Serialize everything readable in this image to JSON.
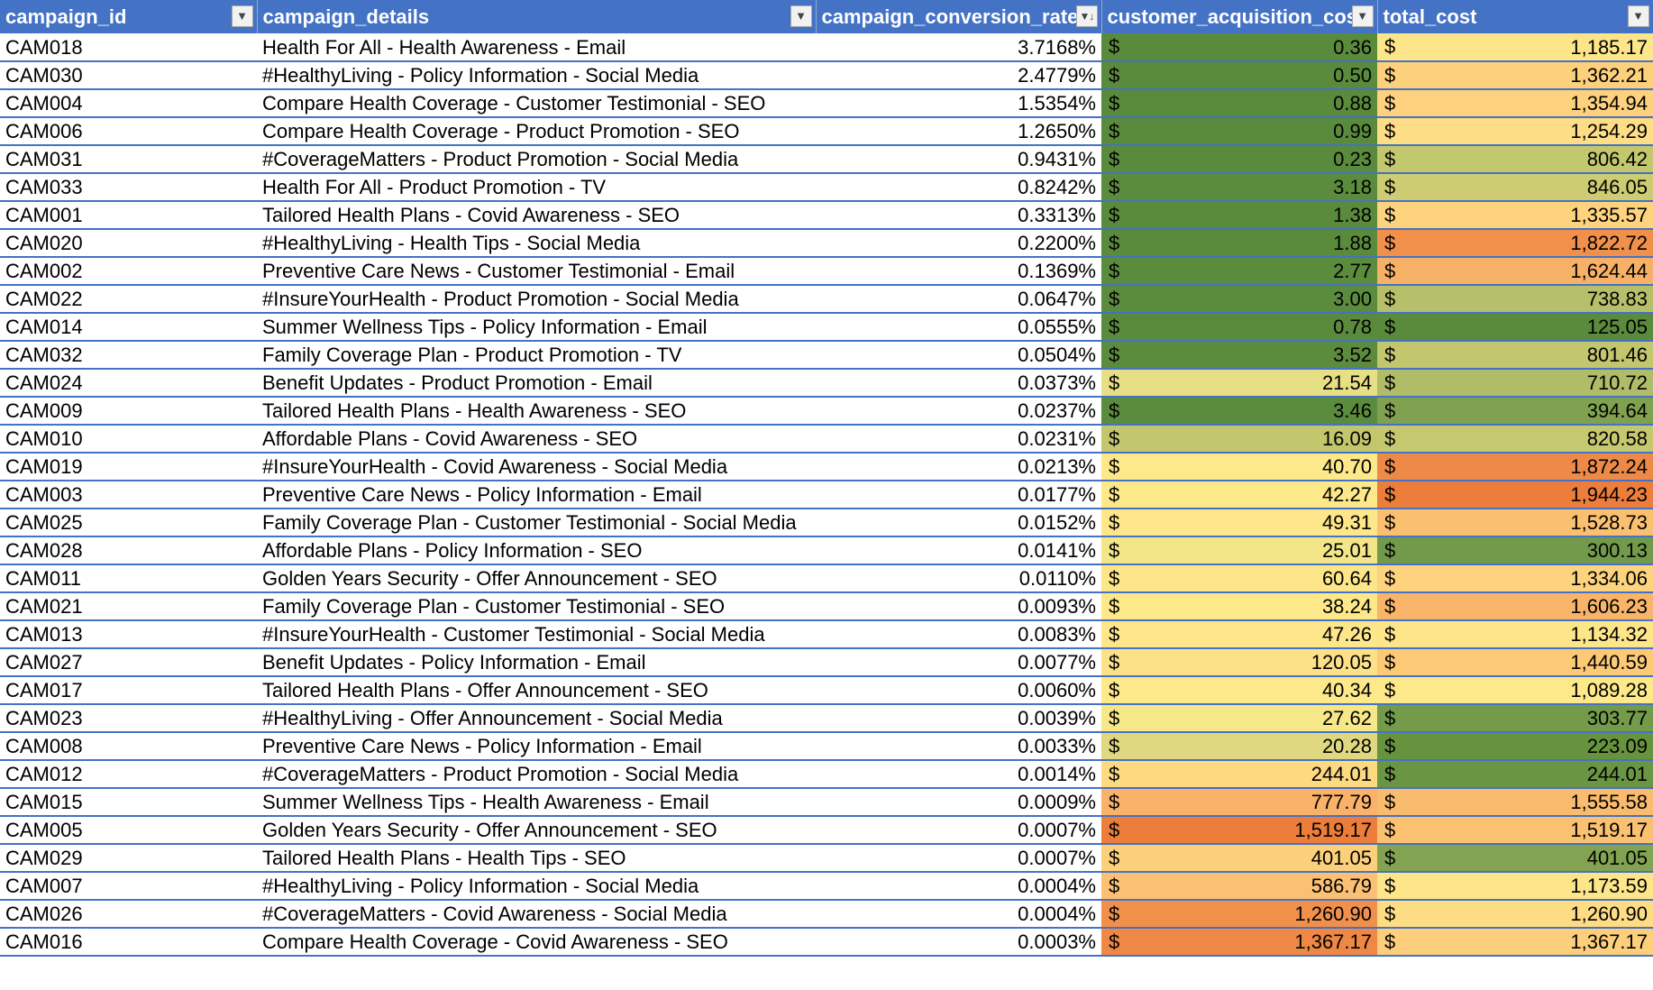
{
  "columns": {
    "campaign_id": "campaign_id",
    "campaign_details": "campaign_details",
    "campaign_conversion_rate": "campaign_conversion_rate",
    "customer_acquisition_cost": "customer_acquisition_cost",
    "total_cost": "total_cost"
  },
  "filter_icons": {
    "dropdown": "▼",
    "sorted_desc": "▼↓"
  },
  "currency_symbol": "$",
  "rows": [
    {
      "id": "CAM018",
      "details": "Health For All - Health Awareness - Email",
      "rate": "3.7168%",
      "cac": "0.36",
      "cac_bg": "#5a8a3c",
      "total": "1,185.17",
      "total_bg": "#fde58a"
    },
    {
      "id": "CAM030",
      "details": "#HealthyLiving - Policy Information - Social Media",
      "rate": "2.4779%",
      "cac": "0.50",
      "cac_bg": "#5a8a3c",
      "total": "1,362.21",
      "total_bg": "#fdd07c"
    },
    {
      "id": "CAM004",
      "details": "Compare Health Coverage - Customer Testimonial - SEO",
      "rate": "1.5354%",
      "cac": "0.88",
      "cac_bg": "#5a8a3c",
      "total": "1,354.94",
      "total_bg": "#fdd17d"
    },
    {
      "id": "CAM006",
      "details": "Compare Health Coverage - Product Promotion - SEO",
      "rate": "1.2650%",
      "cac": "0.99",
      "cac_bg": "#5a8a3c",
      "total": "1,254.29",
      "total_bg": "#fddd85"
    },
    {
      "id": "CAM031",
      "details": "#CoverageMatters - Product Promotion - Social Media",
      "rate": "0.9431%",
      "cac": "0.23",
      "cac_bg": "#5a8a3c",
      "total": "806.42",
      "total_bg": "#c3c76e"
    },
    {
      "id": "CAM033",
      "details": "Health For All - Product Promotion - TV",
      "rate": "0.8242%",
      "cac": "3.18",
      "cac_bg": "#5b8b3c",
      "total": "846.05",
      "total_bg": "#cdcc72"
    },
    {
      "id": "CAM001",
      "details": "Tailored Health Plans - Covid Awareness - SEO",
      "rate": "0.3313%",
      "cac": "1.38",
      "cac_bg": "#5a8a3c",
      "total": "1,335.57",
      "total_bg": "#fdd37e"
    },
    {
      "id": "CAM020",
      "details": "#HealthyLiving - Health Tips - Social Media",
      "rate": "0.2200%",
      "cac": "1.88",
      "cac_bg": "#5a8a3c",
      "total": "1,822.72",
      "total_bg": "#f0904b"
    },
    {
      "id": "CAM002",
      "details": "Preventive Care News - Customer Testimonial - Email",
      "rate": "0.1369%",
      "cac": "2.77",
      "cac_bg": "#5b8b3c",
      "total": "1,624.44",
      "total_bg": "#f7b166"
    },
    {
      "id": "CAM022",
      "details": "#InsureYourHealth - Product Promotion - Social Media",
      "rate": "0.0647%",
      "cac": "3.00",
      "cac_bg": "#5b8b3c",
      "total": "738.83",
      "total_bg": "#b6bf69"
    },
    {
      "id": "CAM014",
      "details": "Summer Wellness Tips - Policy Information - Email",
      "rate": "0.0555%",
      "cac": "0.78",
      "cac_bg": "#5a8a3c",
      "total": "125.05",
      "total_bg": "#5a8a3c"
    },
    {
      "id": "CAM032",
      "details": "Family Coverage Plan - Product Promotion - TV",
      "rate": "0.0504%",
      "cac": "3.52",
      "cac_bg": "#5b8b3c",
      "total": "801.46",
      "total_bg": "#c2c66d"
    },
    {
      "id": "CAM024",
      "details": "Benefit Updates - Product Promotion - Email",
      "rate": "0.0373%",
      "cac": "21.54",
      "cac_bg": "#e6df84",
      "total": "710.72",
      "total_bg": "#b0bc67"
    },
    {
      "id": "CAM009",
      "details": "Tailored Health Plans - Health Awareness - SEO",
      "rate": "0.0237%",
      "cac": "3.46",
      "cac_bg": "#5b8b3c",
      "total": "394.64",
      "total_bg": "#80a250"
    },
    {
      "id": "CAM010",
      "details": "Affordable Plans - Covid Awareness - SEO",
      "rate": "0.0231%",
      "cac": "16.09",
      "cac_bg": "#c2c66d",
      "total": "820.58",
      "total_bg": "#c6c86f"
    },
    {
      "id": "CAM019",
      "details": "#InsureYourHealth - Covid Awareness - Social Media",
      "rate": "0.0213%",
      "cac": "40.70",
      "cac_bg": "#fde88a",
      "total": "1,872.24",
      "total_bg": "#ee8a47"
    },
    {
      "id": "CAM003",
      "details": "Preventive Care News - Policy Information - Email",
      "rate": "0.0177%",
      "cac": "42.27",
      "cac_bg": "#fde88a",
      "total": "1,944.23",
      "total_bg": "#ed7d3a"
    },
    {
      "id": "CAM025",
      "details": "Family Coverage Plan - Customer Testimonial - Social Media",
      "rate": "0.0152%",
      "cac": "49.31",
      "cac_bg": "#fde78a",
      "total": "1,528.73",
      "total_bg": "#fac070"
    },
    {
      "id": "CAM028",
      "details": "Affordable Plans - Policy Information - SEO",
      "rate": "0.0141%",
      "cac": "25.01",
      "cac_bg": "#f3e689",
      "total": "300.13",
      "total_bg": "#729a4a"
    },
    {
      "id": "CAM011",
      "details": "Golden Years Security - Offer Announcement - SEO",
      "rate": "0.0110%",
      "cac": "60.64",
      "cac_bg": "#fde689",
      "total": "1,334.06",
      "total_bg": "#fdd37e"
    },
    {
      "id": "CAM021",
      "details": "Family Coverage Plan - Customer Testimonial - SEO",
      "rate": "0.0093%",
      "cac": "38.24",
      "cac_bg": "#fde88a",
      "total": "1,606.23",
      "total_bg": "#f8b468"
    },
    {
      "id": "CAM013",
      "details": "#InsureYourHealth - Customer Testimonial - Social Media",
      "rate": "0.0083%",
      "cac": "47.26",
      "cac_bg": "#fde78a",
      "total": "1,134.32",
      "total_bg": "#fde58a"
    },
    {
      "id": "CAM027",
      "details": "Benefit Updates - Policy Information - Email",
      "rate": "0.0077%",
      "cac": "120.05",
      "cac_bg": "#fde188",
      "total": "1,440.59",
      "total_bg": "#fcc976"
    },
    {
      "id": "CAM017",
      "details": "Tailored Health Plans - Offer Announcement - SEO",
      "rate": "0.0060%",
      "cac": "40.34",
      "cac_bg": "#fde88a",
      "total": "1,089.28",
      "total_bg": "#fde98a"
    },
    {
      "id": "CAM023",
      "details": "#HealthyLiving - Offer Announcement - Social Media",
      "rate": "0.0039%",
      "cac": "27.62",
      "cac_bg": "#f6e789",
      "total": "303.77",
      "total_bg": "#739b4a"
    },
    {
      "id": "CAM008",
      "details": "Preventive Care News - Policy Information - Email",
      "rate": "0.0033%",
      "cac": "20.28",
      "cac_bg": "#dfd880",
      "total": "223.09",
      "total_bg": "#67933f"
    },
    {
      "id": "CAM012",
      "details": "#CoverageMatters - Product Promotion - Social Media",
      "rate": "0.0014%",
      "cac": "244.01",
      "cac_bg": "#fdd980",
      "total": "244.01",
      "total_bg": "#6a9542"
    },
    {
      "id": "CAM015",
      "details": "Summer Wellness Tips - Health Awareness - Email",
      "rate": "0.0009%",
      "cac": "777.79",
      "cac_bg": "#fab26a",
      "total": "1,555.58",
      "total_bg": "#f9bb6d"
    },
    {
      "id": "CAM005",
      "details": "Golden Years Security - Offer Announcement - SEO",
      "rate": "0.0007%",
      "cac": "1,519.17",
      "cac_bg": "#ed7d3a",
      "total": "1,519.17",
      "total_bg": "#fac171"
    },
    {
      "id": "CAM029",
      "details": "Tailored Health Plans - Health Tips - SEO",
      "rate": "0.0007%",
      "cac": "401.05",
      "cac_bg": "#fcd07b",
      "total": "401.05",
      "total_bg": "#82a351"
    },
    {
      "id": "CAM007",
      "details": "#HealthyLiving - Policy Information - Social Media",
      "rate": "0.0004%",
      "cac": "586.79",
      "cac_bg": "#fbc073",
      "total": "1,173.59",
      "total_bg": "#fde68a"
    },
    {
      "id": "CAM026",
      "details": "#CoverageMatters - Covid Awareness - Social Media",
      "rate": "0.0004%",
      "cac": "1,260.90",
      "cac_bg": "#f0904b",
      "total": "1,260.90",
      "total_bg": "#fddc84"
    },
    {
      "id": "CAM016",
      "details": "Compare Health Coverage - Covid Awareness - SEO",
      "rate": "0.0003%",
      "cac": "1,367.17",
      "cac_bg": "#ef8845",
      "total": "1,367.17",
      "total_bg": "#fdcf7c"
    }
  ]
}
